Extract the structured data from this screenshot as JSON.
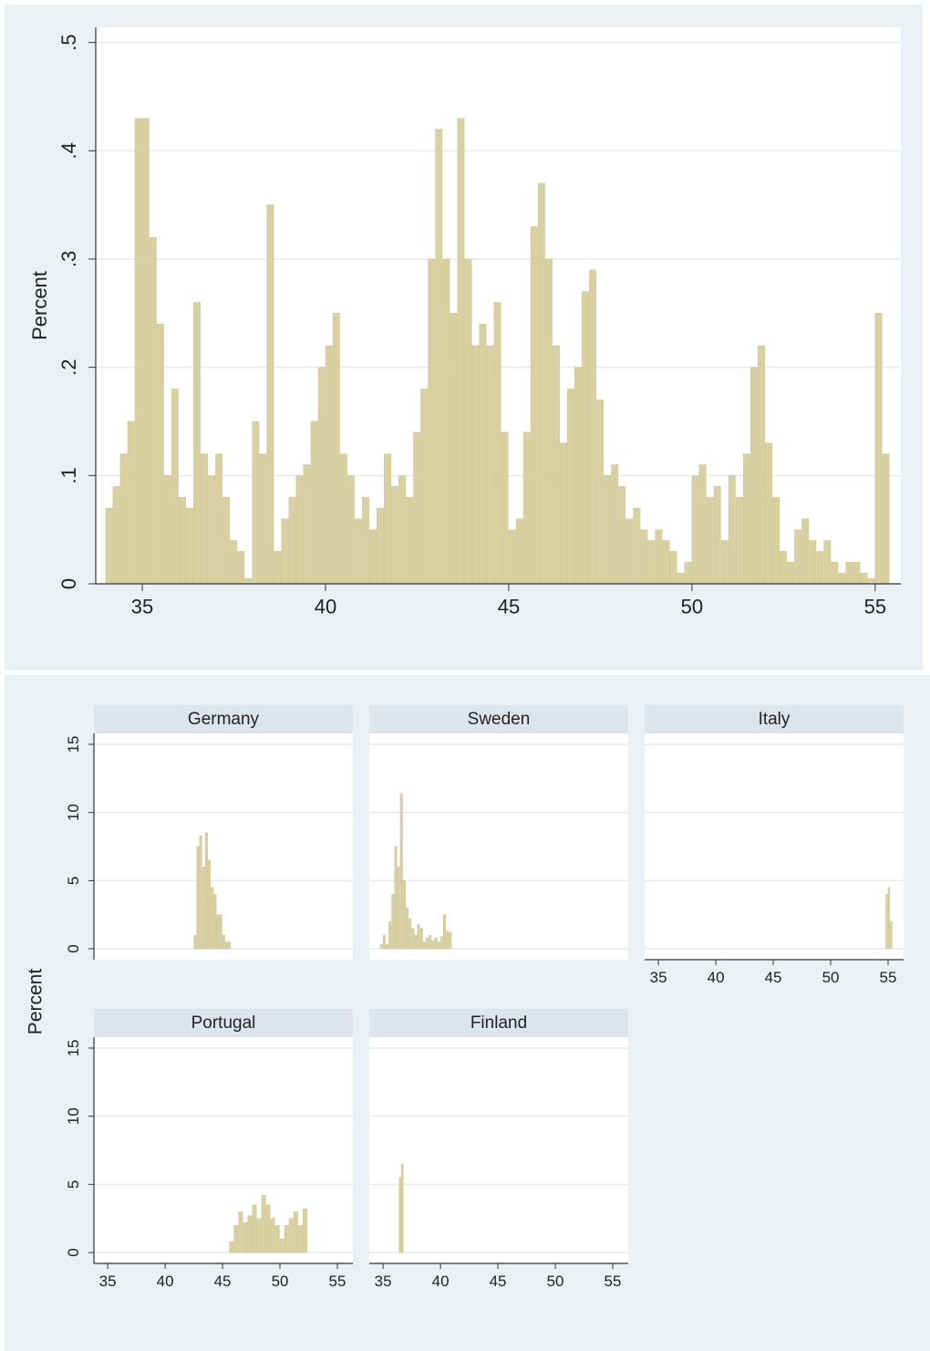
{
  "chart_data": [
    {
      "type": "histogram",
      "y_title": "Percent",
      "color": "#d9d0a2",
      "grid": true,
      "bins": [
        34,
        34.2,
        34.4,
        34.6,
        34.8,
        35,
        35.2,
        35.4,
        35.6,
        35.8,
        36,
        36.2,
        36.4,
        36.6,
        36.8,
        37,
        37.2,
        37.4,
        37.6,
        37.8,
        38,
        38.2,
        38.4,
        38.6,
        38.8,
        39,
        39.2,
        39.4,
        39.6,
        39.8,
        40,
        40.2,
        40.4,
        40.6,
        40.8,
        41,
        41.2,
        41.4,
        41.6,
        41.8,
        42,
        42.2,
        42.4,
        42.6,
        42.8,
        43,
        43.2,
        43.4,
        43.6,
        43.8,
        44,
        44.2,
        44.4,
        44.6,
        44.8,
        45,
        45.2,
        45.4,
        45.6,
        45.8,
        46,
        46.2,
        46.4,
        46.6,
        46.8,
        47,
        47.2,
        47.4,
        47.6,
        47.8,
        48,
        48.2,
        48.4,
        48.6,
        48.8,
        49,
        49.2,
        49.4,
        49.6,
        49.8,
        50,
        50.2,
        50.4,
        50.6,
        50.8,
        51,
        51.2,
        51.4,
        51.6,
        51.8,
        52,
        52.2,
        52.4,
        52.6,
        52.8,
        53,
        53.2,
        53.4,
        53.6,
        53.8,
        54,
        54.2,
        54.4,
        54.6,
        54.8,
        55,
        55.2,
        55.4
      ],
      "values": [
        0.07,
        0.09,
        0.12,
        0.15,
        0.43,
        0.43,
        0.32,
        0.24,
        0.1,
        0.18,
        0.08,
        0.07,
        0.26,
        0.12,
        0.1,
        0.12,
        0.08,
        0.04,
        0.03,
        0.005,
        0.15,
        0.12,
        0.35,
        0.03,
        0.06,
        0.08,
        0.1,
        0.11,
        0.15,
        0.2,
        0.22,
        0.25,
        0.12,
        0.1,
        0.06,
        0.08,
        0.05,
        0.07,
        0.12,
        0.09,
        0.1,
        0.08,
        0.14,
        0.18,
        0.3,
        0.42,
        0.3,
        0.25,
        0.43,
        0.3,
        0.22,
        0.24,
        0.22,
        0.26,
        0.14,
        0.05,
        0.06,
        0.14,
        0.33,
        0.37,
        0.3,
        0.22,
        0.13,
        0.18,
        0.2,
        0.27,
        0.29,
        0.17,
        0.1,
        0.11,
        0.09,
        0.06,
        0.07,
        0.05,
        0.04,
        0.05,
        0.04,
        0.03,
        0.01,
        0.02,
        0.1,
        0.11,
        0.08,
        0.09,
        0.04,
        0.1,
        0.08,
        0.12,
        0.2,
        0.22,
        0.13,
        0.08,
        0.03,
        0.02,
        0.05,
        0.06,
        0.04,
        0.03,
        0.04,
        0.02,
        0.01,
        0.02,
        0.02,
        0.01,
        0.005,
        0.25,
        0.12
      ],
      "xlim": [
        33.73,
        55.7
      ],
      "xticks": [
        35,
        40,
        45,
        50,
        55
      ],
      "ylim": [
        0,
        0.514
      ],
      "yticks": [
        0,
        {
          "value": 0.1,
          "label": ".1"
        },
        {
          "value": 0.2,
          "label": ".2"
        },
        {
          "value": 0.3,
          "label": ".3"
        },
        {
          "value": 0.4,
          "label": ".4"
        },
        {
          "value": 0.5,
          "label": ".5"
        }
      ]
    },
    {
      "type": "histogram",
      "y_title": "Percent",
      "color": "#d9d0a2",
      "grid": true,
      "xlim": [
        33.8,
        56.35
      ],
      "xticks": [
        35,
        40,
        45,
        50,
        55
      ],
      "ylim": [
        -0.8,
        15.8
      ],
      "yticks": [
        0,
        5,
        10,
        15
      ],
      "panels": [
        {
          "title": "Germany",
          "bins": [
            42.5,
            42.75,
            43,
            43.25,
            43.5,
            43.75,
            44,
            44.25,
            44.5,
            44.75,
            45,
            45.25,
            45.5,
            45.75
          ],
          "values": [
            1,
            7.5,
            8.3,
            6,
            8.5,
            6.5,
            4.5,
            4,
            2.5,
            2.5,
            1,
            0.5,
            0.5
          ]
        },
        {
          "title": "Sweden",
          "bins": [
            34.75,
            35,
            35.25,
            35.5,
            35.75,
            36,
            36.25,
            36.5,
            36.75,
            37,
            37.25,
            37.5,
            37.75,
            38,
            38.25,
            38.5,
            38.75,
            39,
            39.25,
            39.5,
            39.75,
            40,
            40.25,
            40.5,
            40.75,
            41
          ],
          "values": [
            0.3,
            1,
            0.3,
            2,
            4,
            7.5,
            6,
            11.4,
            5,
            3,
            2.2,
            1.5,
            1,
            1.8,
            1.5,
            0.5,
            0.8,
            1,
            0.6,
            0.8,
            0.5,
            0.9,
            2.5,
            1.3,
            1.2
          ]
        },
        {
          "title": "Italy",
          "bins": [
            54.8,
            55,
            55.2,
            55.4
          ],
          "values": [
            4,
            4.5,
            2
          ]
        },
        {
          "title": "Portugal",
          "bins": [
            45.6,
            46,
            46.4,
            46.8,
            47.2,
            47.6,
            48,
            48.4,
            48.8,
            49.2,
            49.6,
            50,
            50.4,
            50.8,
            51.2,
            51.6,
            52,
            52.4
          ],
          "values": [
            0.8,
            2,
            3,
            2.2,
            2.7,
            3.5,
            2.5,
            4.2,
            3.5,
            2.5,
            2,
            1,
            2,
            2.5,
            3,
            2,
            3.2
          ]
        },
        {
          "title": "Finland",
          "bins": [
            36.4,
            36.6,
            36.8
          ],
          "values": [
            5.5,
            6.5
          ]
        }
      ]
    }
  ]
}
